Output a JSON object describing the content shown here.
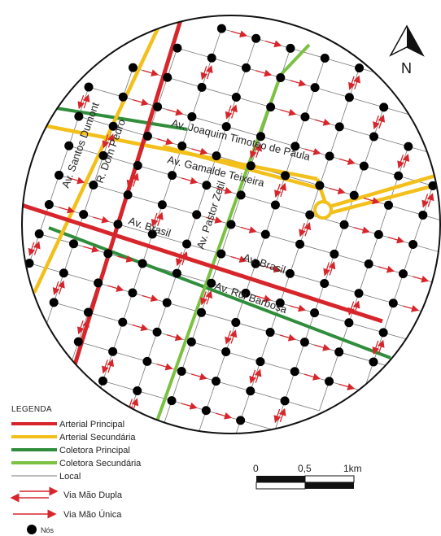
{
  "map": {
    "north_label": "N",
    "street_labels": {
      "santos_dumont": "Av. Santos Dumont",
      "dom_pedro": "R. Dom Pedro",
      "joaquim": "Av. Joaquim Timoteo de Paula",
      "gamalde": "Av. Gamalde Teixeira",
      "brasil_1": "Av. Brasil",
      "pastor": "Av. Pastor Zetil",
      "brasil_2": "Av. Brasil",
      "rui_barbosa": "Av. Rui Barbosa"
    }
  },
  "legend": {
    "title": "LEGENDA",
    "items": [
      {
        "label": "Arterial Principal",
        "color": "#d7262b"
      },
      {
        "label": "Arterial Secundária",
        "color": "#f3c01b"
      },
      {
        "label": "Coletora Principal",
        "color": "#2f8d3b"
      },
      {
        "label": "Coletora Secundária",
        "color": "#7bc142"
      },
      {
        "label": "Local",
        "color": "#777777"
      },
      {
        "label": "Via Mão Dupla",
        "color": "#d7262b"
      },
      {
        "label": "Via Mão Única",
        "color": "#d7262b"
      },
      {
        "label": "Nós",
        "color": "#000000"
      }
    ]
  },
  "scale_bar": {
    "labels": [
      "0",
      "0,5",
      "1km"
    ]
  }
}
